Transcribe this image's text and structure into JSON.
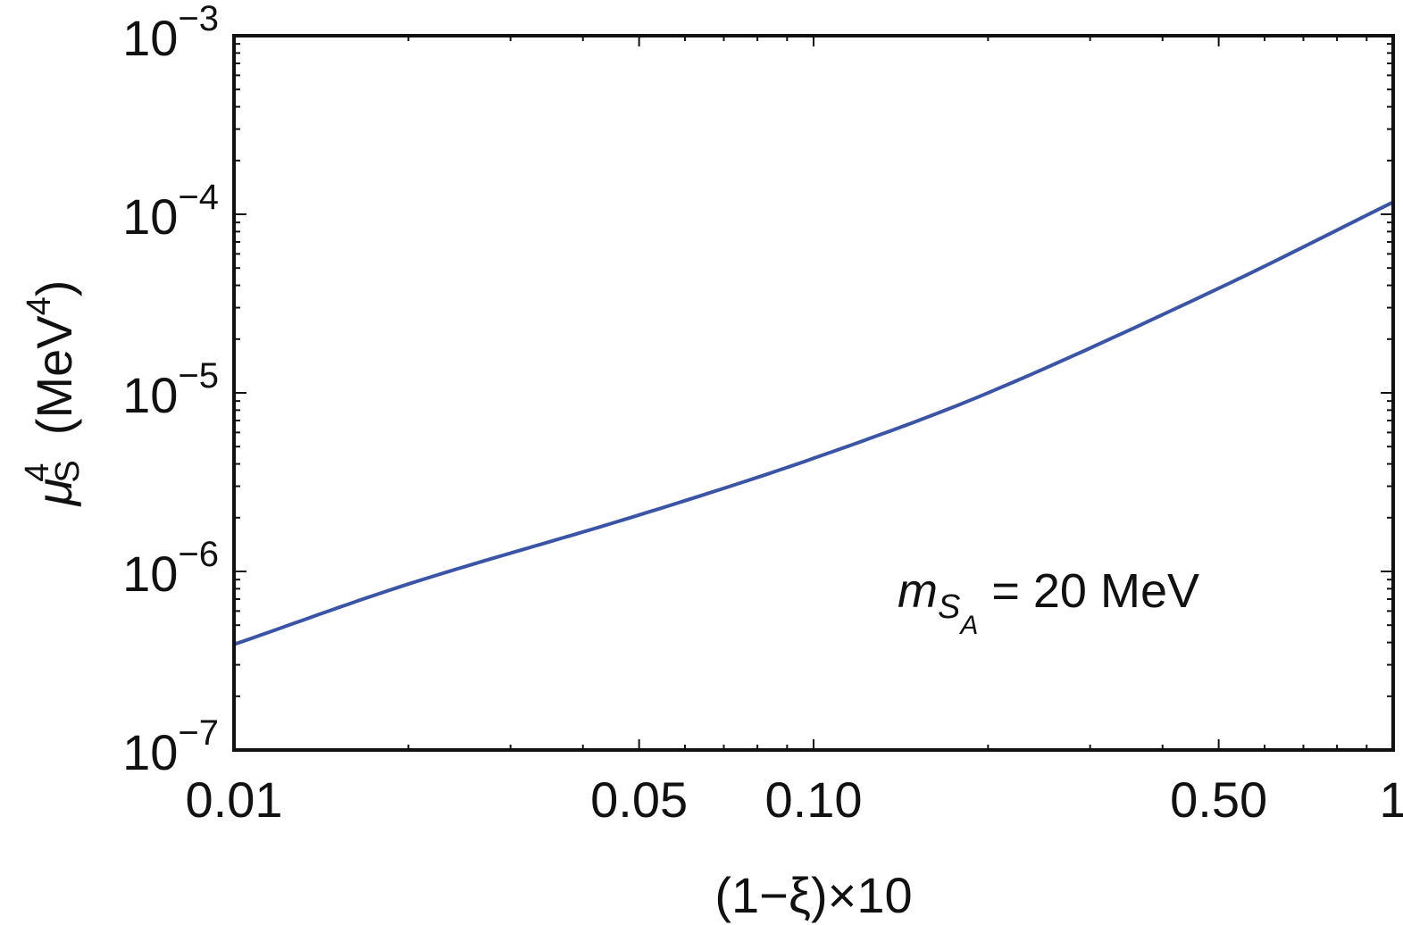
{
  "chart_data": {
    "type": "line",
    "title": "",
    "xlabel": "(1−ξ)×10",
    "ylabel": "μ_S^4 (MeV^4)",
    "ylabel_parts": {
      "symbol": "μ",
      "sup": "4",
      "sub": "S",
      "unit": "(MeV",
      "unit_sup": "4",
      "unit_close": ")"
    },
    "xscale": "log",
    "yscale": "log",
    "xlim": [
      0.01,
      1
    ],
    "ylim": [
      1e-07,
      0.001
    ],
    "grid": false,
    "x_ticks": [
      {
        "value": 0.01,
        "label": "0.01"
      },
      {
        "value": 0.05,
        "label": "0.05"
      },
      {
        "value": 0.1,
        "label": "0.10"
      },
      {
        "value": 0.5,
        "label": "0.50"
      },
      {
        "value": 1,
        "label": "1"
      }
    ],
    "y_ticks": [
      {
        "value": 1e-07,
        "base": "10",
        "exp": "−7"
      },
      {
        "value": 1e-06,
        "base": "10",
        "exp": "−6"
      },
      {
        "value": 1e-05,
        "base": "10",
        "exp": "−5"
      },
      {
        "value": 0.0001,
        "base": "10",
        "exp": "−4"
      },
      {
        "value": 0.001,
        "base": "10",
        "exp": "−3"
      }
    ],
    "series": [
      {
        "name": "m_SA = 20 MeV",
        "color": "#3a55a8",
        "x": [
          0.01,
          0.02,
          0.05,
          0.1,
          0.2,
          0.5,
          1.0
        ],
        "y": [
          3.9e-07,
          8.5e-07,
          2.07e-06,
          4.3e-06,
          1e-05,
          3.85e-05,
          0.000117
        ]
      }
    ],
    "annotation": {
      "main": "m",
      "sub": "S",
      "subsub": "A",
      "rest": " = 20 MeV"
    }
  }
}
